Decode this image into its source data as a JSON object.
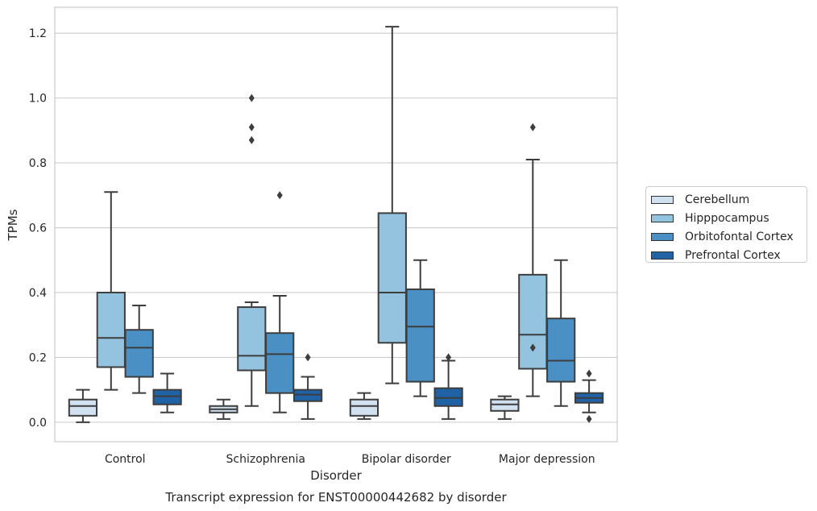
{
  "chart_data": {
    "type": "box",
    "title": "Transcript expression for ENST00000442682 by disorder",
    "xlabel": "Disorder",
    "ylabel": "TPMs",
    "ylim": [
      -0.06,
      1.28
    ],
    "yticks": [
      "0.0",
      "0.2",
      "0.4",
      "0.6",
      "0.8",
      "1.0",
      "1.2"
    ],
    "grid": true,
    "legend_position": "right",
    "categories": [
      "Control",
      "Schizophrenia",
      "Bipolar disorder",
      "Major depression"
    ],
    "series": [
      {
        "name": "Cerebellum",
        "color": "#d1e1f0",
        "boxes": [
          {
            "q1": 0.02,
            "median": 0.05,
            "q3": 0.07,
            "whisker_low": 0.0,
            "whisker_high": 0.1,
            "outliers": []
          },
          {
            "q1": 0.03,
            "median": 0.04,
            "q3": 0.05,
            "whisker_low": 0.01,
            "whisker_high": 0.07,
            "outliers": []
          },
          {
            "q1": 0.02,
            "median": 0.05,
            "q3": 0.07,
            "whisker_low": 0.01,
            "whisker_high": 0.09,
            "outliers": []
          },
          {
            "q1": 0.035,
            "median": 0.055,
            "q3": 0.07,
            "whisker_low": 0.01,
            "whisker_high": 0.08,
            "outliers": []
          }
        ]
      },
      {
        "name": "Hipppocampus",
        "color": "#93c3df",
        "boxes": [
          {
            "q1": 0.17,
            "median": 0.26,
            "q3": 0.4,
            "whisker_low": 0.1,
            "whisker_high": 0.71,
            "outliers": []
          },
          {
            "q1": 0.16,
            "median": 0.205,
            "q3": 0.355,
            "whisker_low": 0.05,
            "whisker_high": 0.37,
            "outliers": [
              0.87,
              0.91,
              1.0
            ]
          },
          {
            "q1": 0.245,
            "median": 0.4,
            "q3": 0.645,
            "whisker_low": 0.12,
            "whisker_high": 1.22,
            "outliers": []
          },
          {
            "q1": 0.165,
            "median": 0.27,
            "q3": 0.455,
            "whisker_low": 0.08,
            "whisker_high": 0.81,
            "outliers": [
              0.23,
              0.91
            ]
          }
        ]
      },
      {
        "name": "Orbitofontal Cortex",
        "color": "#4a90c4",
        "boxes": [
          {
            "q1": 0.14,
            "median": 0.23,
            "q3": 0.285,
            "whisker_low": 0.09,
            "whisker_high": 0.36,
            "outliers": []
          },
          {
            "q1": 0.09,
            "median": 0.21,
            "q3": 0.275,
            "whisker_low": 0.03,
            "whisker_high": 0.39,
            "outliers": [
              0.7
            ]
          },
          {
            "q1": 0.125,
            "median": 0.295,
            "q3": 0.41,
            "whisker_low": 0.08,
            "whisker_high": 0.5,
            "outliers": []
          },
          {
            "q1": 0.125,
            "median": 0.19,
            "q3": 0.32,
            "whisker_low": 0.05,
            "whisker_high": 0.5,
            "outliers": []
          }
        ]
      },
      {
        "name": "Prefrontal Cortex",
        "color": "#1f63a6",
        "boxes": [
          {
            "q1": 0.055,
            "median": 0.08,
            "q3": 0.1,
            "whisker_low": 0.03,
            "whisker_high": 0.15,
            "outliers": []
          },
          {
            "q1": 0.065,
            "median": 0.085,
            "q3": 0.1,
            "whisker_low": 0.01,
            "whisker_high": 0.14,
            "outliers": [
              0.2
            ]
          },
          {
            "q1": 0.05,
            "median": 0.075,
            "q3": 0.105,
            "whisker_low": 0.01,
            "whisker_high": 0.19,
            "outliers": [
              0.2
            ]
          },
          {
            "q1": 0.06,
            "median": 0.075,
            "q3": 0.09,
            "whisker_low": 0.03,
            "whisker_high": 0.13,
            "outliers": [
              0.01,
              0.15
            ]
          }
        ]
      }
    ]
  }
}
